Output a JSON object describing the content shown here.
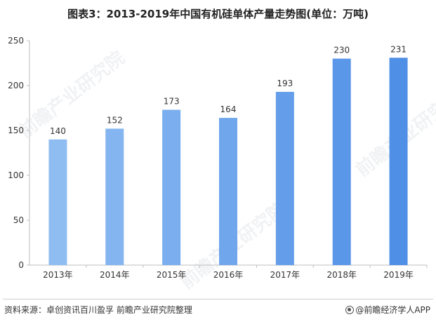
{
  "title": "图表3：2013-2019年中国有机硅单体产量走势图(单位：万吨)",
  "source": "资料来源：卓创资讯百川盈孚 前瞻产业研究院整理",
  "brand": "@前瞻经济学人APP",
  "watermark": "前瞻产业研究院",
  "colors": {
    "bar_light": "#8fbdf2",
    "bar_dark": "#4f8fe6",
    "axis": "#bfbfbf"
  },
  "chart_data": {
    "type": "bar",
    "categories": [
      "2013年",
      "2014年",
      "2015年",
      "2016年",
      "2017年",
      "2018年",
      "2019年"
    ],
    "values": [
      140,
      152,
      173,
      164,
      193,
      230,
      231
    ],
    "ylim": [
      0,
      250
    ],
    "yticks": [
      0,
      50,
      100,
      150,
      200,
      250
    ],
    "grid": false,
    "legend": "none"
  }
}
